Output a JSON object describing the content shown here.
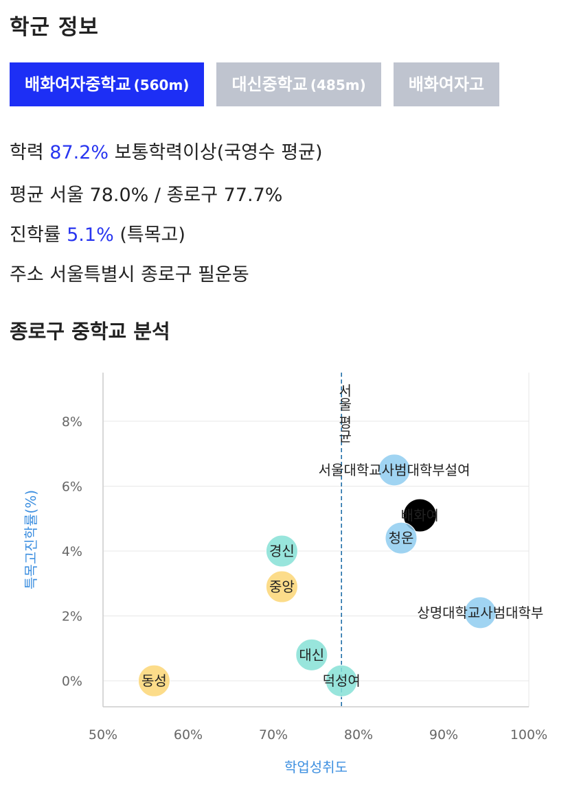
{
  "page": {
    "title": "학군 정보"
  },
  "tabs": [
    {
      "name": "배화여자중학교",
      "distance": "(560m)",
      "active": true
    },
    {
      "name": "대신중학교",
      "distance": "(485m)",
      "active": false
    },
    {
      "name": "배화여자고",
      "distance": "",
      "active": false
    }
  ],
  "info": {
    "academic": {
      "key": "학력",
      "value": "87.2%",
      "desc": "보통학력이상(국영수 평균)"
    },
    "average": {
      "key": "평균",
      "desc": "서울 78.0% / 종로구 77.7%"
    },
    "advancement": {
      "key": "진학률",
      "value": "5.1%",
      "desc": "(특목고)"
    },
    "address": {
      "key": "주소",
      "desc": "서울특별시 종로구 필운동"
    }
  },
  "analysis": {
    "title": "종로구 중학교 분석"
  },
  "chart_data": {
    "type": "scatter",
    "xlabel": "학업성취도",
    "ylabel": "특목고진학률(%)",
    "xlim": [
      50,
      100
    ],
    "ylim": [
      -0.8,
      9.5
    ],
    "x_ticks": [
      "50%",
      "60%",
      "70%",
      "80%",
      "90%",
      "100%"
    ],
    "y_ticks": [
      "0%",
      "2%",
      "4%",
      "6%",
      "8%"
    ],
    "grid": true,
    "reference_line": {
      "x": 78.0,
      "label": "서울 평균"
    },
    "colors": {
      "blue": "#8fcdf0",
      "teal": "#86e0d6",
      "yellow": "#fbd676",
      "black": "#000000",
      "axis_label": "#3d8fe0"
    },
    "points": [
      {
        "label": "서울대학교사범대학부설여",
        "x": 84.2,
        "y": 6.5,
        "color": "blue"
      },
      {
        "label": "배화여",
        "x": 87.2,
        "y": 5.1,
        "color": "black"
      },
      {
        "label": "청운",
        "x": 85.0,
        "y": 4.4,
        "color": "blue"
      },
      {
        "label": "경신",
        "x": 71.0,
        "y": 4.0,
        "color": "teal"
      },
      {
        "label": "중앙",
        "x": 71.0,
        "y": 2.9,
        "color": "yellow"
      },
      {
        "label": "상명대학교사범대학부",
        "x": 94.3,
        "y": 2.1,
        "color": "blue"
      },
      {
        "label": "대신",
        "x": 74.5,
        "y": 0.8,
        "color": "teal"
      },
      {
        "label": "덕성여",
        "x": 78.0,
        "y": 0.0,
        "color": "teal"
      },
      {
        "label": "동성",
        "x": 56.0,
        "y": 0.0,
        "color": "yellow"
      }
    ]
  }
}
